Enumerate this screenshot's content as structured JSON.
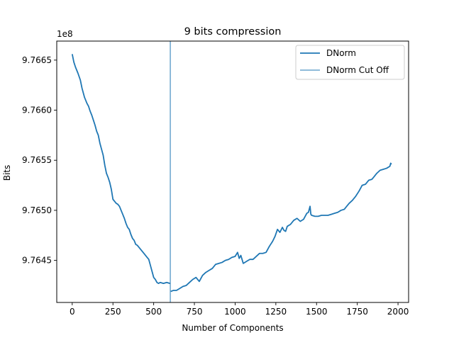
{
  "chart_data": {
    "type": "line",
    "title": "9 bits compression",
    "xlabel": "Number of Components",
    "ylabel": "Bits",
    "y_offset_label": "1e8",
    "y_scale": 100000000,
    "xlim": [
      -95,
      2065
    ],
    "ylim": [
      9.76408,
      9.76669
    ],
    "x_ticks": [
      0,
      250,
      500,
      750,
      1000,
      1250,
      1500,
      1750,
      2000
    ],
    "x_tick_labels": [
      "0",
      "250",
      "500",
      "750",
      "1000",
      "1250",
      "1500",
      "1750",
      "2000"
    ],
    "y_ticks": [
      9.7645,
      9.765,
      9.7655,
      9.766,
      9.7665
    ],
    "y_tick_labels": [
      "9.7645",
      "9.7650",
      "9.7655",
      "9.7660",
      "9.7665"
    ],
    "grid": false,
    "legend_position": "top-right",
    "series": [
      {
        "name": "DNorm",
        "color": "#1f77b4",
        "x": [
          0,
          10,
          20,
          35,
          50,
          60,
          75,
          90,
          100,
          110,
          120,
          130,
          140,
          150,
          160,
          170,
          180,
          190,
          200,
          210,
          220,
          230,
          240,
          250,
          260,
          270,
          280,
          290,
          300,
          310,
          320,
          330,
          340,
          350,
          360,
          370,
          380,
          390,
          400,
          420,
          440,
          450,
          460,
          470,
          480,
          490,
          500,
          510,
          520,
          530,
          540,
          560,
          580,
          600
        ],
        "y": [
          9.76656,
          9.76648,
          9.76643,
          9.76637,
          9.7663,
          9.76622,
          9.76613,
          9.76607,
          9.76604,
          9.76599,
          9.76595,
          9.7659,
          9.76585,
          9.76579,
          9.76575,
          9.76567,
          9.76561,
          9.76555,
          9.76545,
          9.76537,
          9.76533,
          9.76528,
          9.76521,
          9.76511,
          9.76509,
          9.76507,
          9.76506,
          9.76504,
          9.765,
          9.76496,
          9.76492,
          9.76487,
          9.76483,
          9.76481,
          9.76476,
          9.76472,
          9.7647,
          9.76466,
          9.76465,
          9.76461,
          9.76457,
          9.76455,
          9.76453,
          9.76451,
          9.76445,
          9.76439,
          9.76433,
          9.76431,
          9.76428,
          9.76427,
          9.76428,
          9.76427,
          9.76428,
          9.76427
        ]
      },
      {
        "name": "DNorm Cut Off",
        "color": "#1f77b4",
        "x": [
          602,
          602
        ],
        "y": [
          9.76408,
          9.76669
        ]
      },
      {
        "name": "",
        "color": "#1f77b4",
        "x": [
          605,
          620,
          640,
          660,
          680,
          700,
          720,
          740,
          760,
          780,
          800,
          820,
          840,
          860,
          880,
          900,
          920,
          940,
          960,
          980,
          1000,
          1015,
          1025,
          1035,
          1050,
          1070,
          1090,
          1110,
          1130,
          1150,
          1170,
          1190,
          1210,
          1230,
          1245,
          1260,
          1275,
          1290,
          1300,
          1310,
          1320,
          1340,
          1360,
          1380,
          1400,
          1420,
          1440,
          1450,
          1460,
          1465,
          1470,
          1490,
          1510,
          1530,
          1550,
          1570,
          1590,
          1610,
          1630,
          1650,
          1670,
          1690,
          1700,
          1720,
          1740,
          1760,
          1780,
          1800,
          1820,
          1840,
          1850,
          1870,
          1890,
          1910,
          1930,
          1950,
          1955,
          1960
        ],
        "y": [
          9.76419,
          9.7642,
          9.7642,
          9.76422,
          9.76424,
          9.76425,
          9.76428,
          9.76431,
          9.76433,
          9.76429,
          9.76435,
          9.76438,
          9.7644,
          9.76442,
          9.76446,
          9.76447,
          9.76448,
          9.7645,
          9.76451,
          9.76453,
          9.76454,
          9.76458,
          9.76452,
          9.76455,
          9.76447,
          9.76449,
          9.76451,
          9.76451,
          9.76454,
          9.76457,
          9.76457,
          9.76458,
          9.76464,
          9.76469,
          9.76474,
          9.76481,
          9.76478,
          9.76483,
          9.7648,
          9.76479,
          9.76484,
          9.76486,
          9.7649,
          9.76492,
          9.76489,
          9.76491,
          9.76497,
          9.76498,
          9.76504,
          9.76496,
          9.76495,
          9.76494,
          9.76494,
          9.76495,
          9.76495,
          9.76495,
          9.76496,
          9.76497,
          9.76498,
          9.765,
          9.76501,
          9.76505,
          9.76507,
          9.7651,
          9.76514,
          9.76519,
          9.76525,
          9.76526,
          9.7653,
          9.76531,
          9.76533,
          9.76537,
          9.7654,
          9.76541,
          9.76542,
          9.76544,
          9.76547,
          9.76546
        ]
      }
    ]
  }
}
